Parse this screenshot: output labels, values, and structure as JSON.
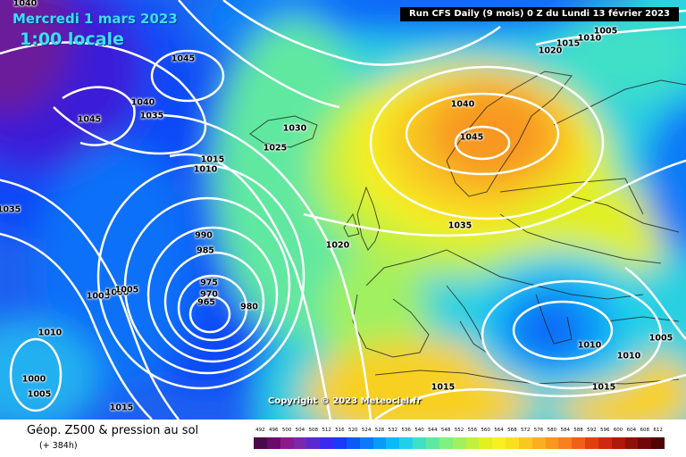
{
  "header": {
    "date_line": "Mercredi 1 mars 2023",
    "time_line": "1:00 locale",
    "run_info": "Run CFS Daily (9 mois) 0 Z du Lundi 13 février 2023"
  },
  "copyright": "Copyright © 2023 Meteociel.fr",
  "legend": {
    "title": "Géop. Z500 & pression au sol",
    "subtitle": "(+ 384h)",
    "scale_values": [
      "492",
      "496",
      "500",
      "504",
      "508",
      "512",
      "516",
      "520",
      "524",
      "528",
      "532",
      "536",
      "540",
      "544",
      "548",
      "552",
      "556",
      "560",
      "564",
      "568",
      "572",
      "576",
      "580",
      "584",
      "588",
      "592",
      "596",
      "600",
      "604",
      "608",
      "612"
    ],
    "scale_colors": [
      "#4a0a4a",
      "#6a0a6a",
      "#8a1a8a",
      "#7a2aa8",
      "#5a2ad0",
      "#3a2af0",
      "#1a3af8",
      "#0a5af8",
      "#0a7af8",
      "#0a9af8",
      "#0abaf8",
      "#20d0e8",
      "#40e0c8",
      "#60e8a0",
      "#80f080",
      "#a0f060",
      "#c0f040",
      "#e0f020",
      "#f8f020",
      "#f8e020",
      "#f8c820",
      "#f8b020",
      "#f89820",
      "#f88020",
      "#f06018",
      "#e04010",
      "#d02810",
      "#b01808",
      "#901008",
      "#700808",
      "#500404"
    ]
  },
  "isobar_labels": [
    {
      "text": "1040"
    },
    {
      "text": "1045"
    },
    {
      "text": "1040"
    },
    {
      "text": "1035"
    },
    {
      "text": "1045"
    },
    {
      "text": "1030"
    },
    {
      "text": "1025"
    },
    {
      "text": "1015"
    },
    {
      "text": "1010"
    },
    {
      "text": "1035"
    },
    {
      "text": "990"
    },
    {
      "text": "985"
    },
    {
      "text": "975"
    },
    {
      "text": "970"
    },
    {
      "text": "965"
    },
    {
      "text": "980"
    },
    {
      "text": "1005"
    },
    {
      "text": "1000"
    },
    {
      "text": "1005"
    },
    {
      "text": "1010"
    },
    {
      "text": "1000"
    },
    {
      "text": "1005"
    },
    {
      "text": "1015"
    },
    {
      "text": "1020"
    },
    {
      "text": "1040"
    },
    {
      "text": "1045"
    },
    {
      "text": "1035"
    },
    {
      "text": "1020"
    },
    {
      "text": "1015"
    },
    {
      "text": "1010"
    },
    {
      "text": "1005"
    },
    {
      "text": "1010"
    },
    {
      "text": "1010"
    },
    {
      "text": "1005"
    },
    {
      "text": "1015"
    },
    {
      "text": "1015"
    }
  ]
}
